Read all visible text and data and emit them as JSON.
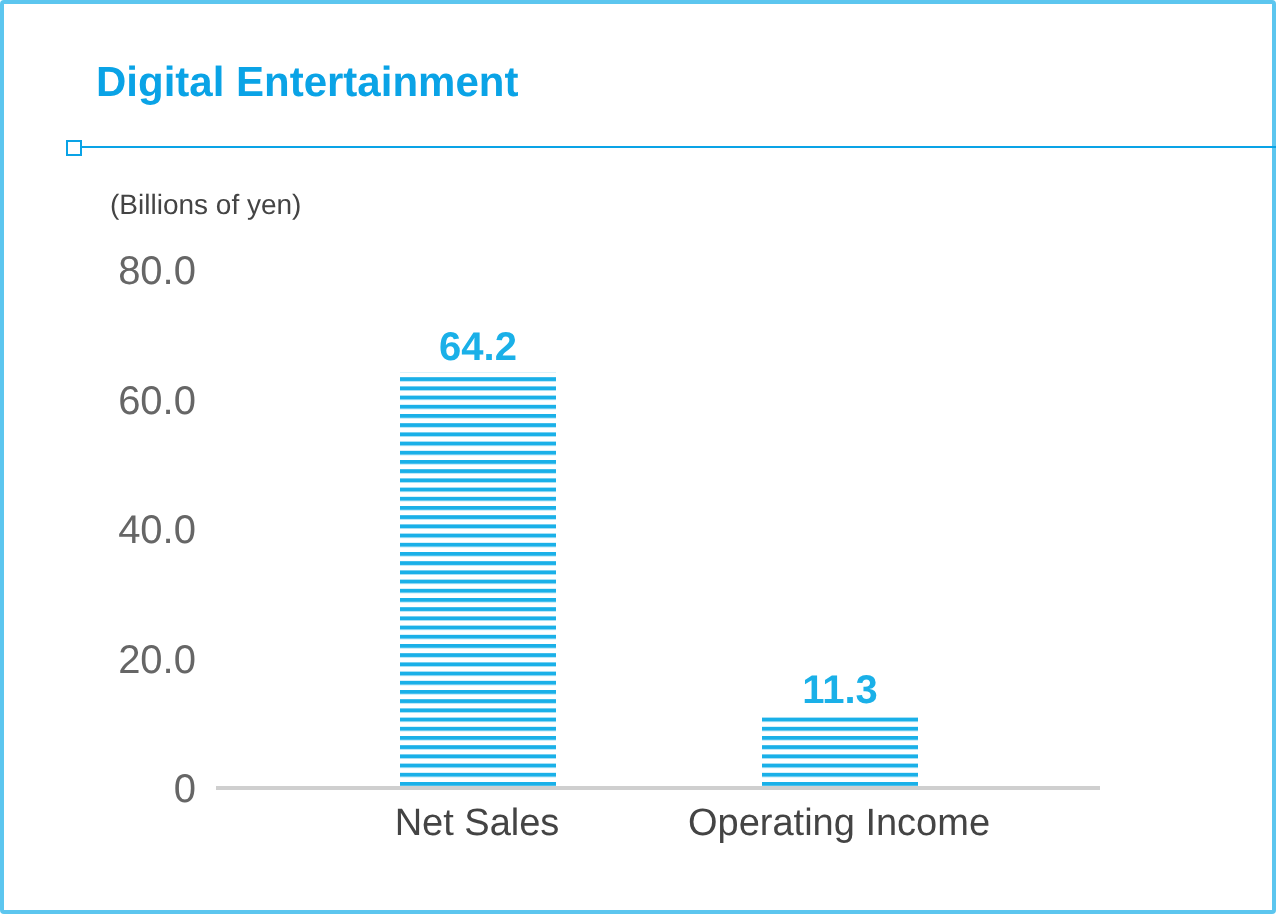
{
  "chart_data": {
    "type": "bar",
    "title": "Digital Entertainment",
    "ylabel": "(Billions of yen)",
    "categories": [
      "Net Sales",
      "Operating Income"
    ],
    "values": [
      64.2,
      11.3
    ],
    "color": "#1ab0e8",
    "ylim": [
      0,
      80
    ],
    "yticks": [
      {
        "value": 0,
        "label": "0"
      },
      {
        "value": 20,
        "label": "20.0"
      },
      {
        "value": 40,
        "label": "40.0"
      },
      {
        "value": 60,
        "label": "60.0"
      },
      {
        "value": 80,
        "label": "80.0"
      }
    ],
    "data_labels": true,
    "grid": false,
    "legend": false
  }
}
